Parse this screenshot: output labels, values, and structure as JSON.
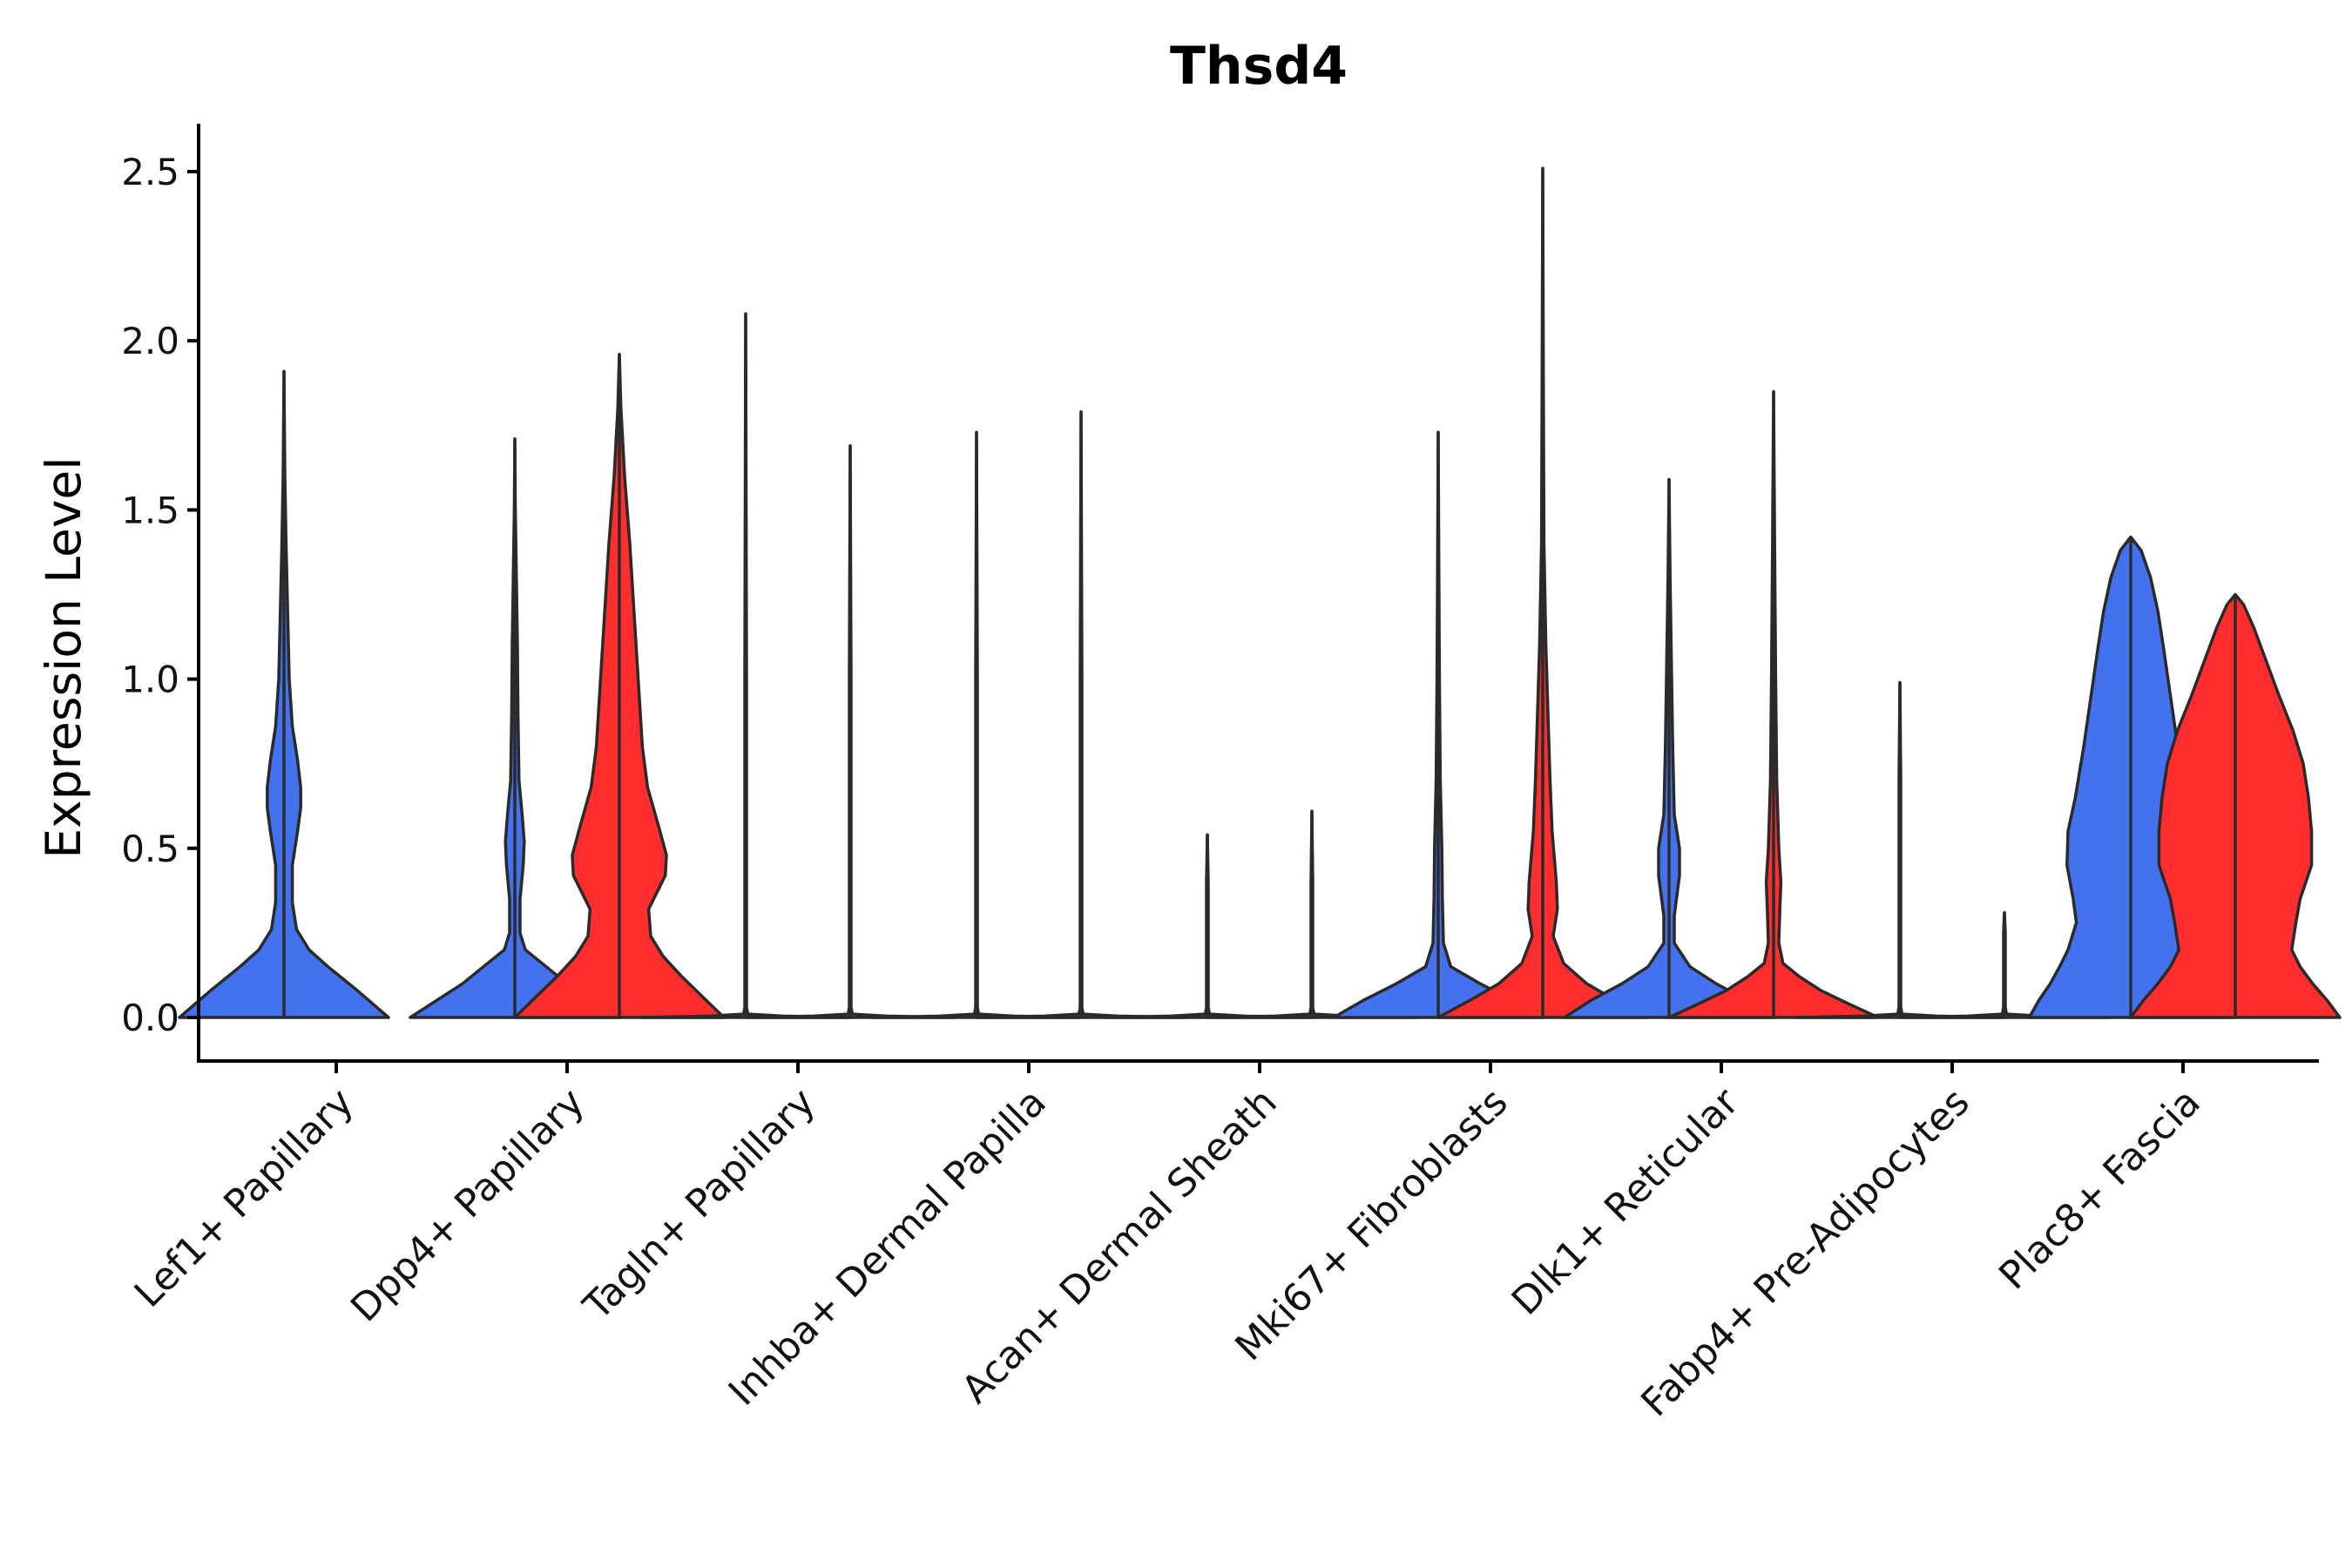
{
  "chart_data": {
    "type": "violin",
    "title": "Thsd4",
    "xlabel": "",
    "ylabel": "Expression Level",
    "ylim": [
      -0.13,
      2.64
    ],
    "yticks": [
      0.0,
      0.5,
      1.0,
      1.5,
      2.0,
      2.5
    ],
    "ytick_labels": [
      "0.0",
      "0.5",
      "1.0",
      "1.5",
      "2.0",
      "2.5"
    ],
    "grid": false,
    "legend": "none",
    "series_colors": [
      "#4472ee",
      "#ff2d2d"
    ],
    "categories": [
      {
        "label": "Lef1+ Papillary",
        "violins": [
          {
            "color": "#4472ee",
            "max": 1.91,
            "profile": [
              [
                0,
                1.0
              ],
              [
                0.08,
                0.7
              ],
              [
                0.15,
                0.42
              ],
              [
                0.2,
                0.24
              ],
              [
                0.26,
                0.12
              ],
              [
                0.34,
                0.08
              ],
              [
                0.45,
                0.08
              ],
              [
                0.55,
                0.13
              ],
              [
                0.62,
                0.16
              ],
              [
                0.68,
                0.16
              ],
              [
                0.76,
                0.13
              ],
              [
                0.86,
                0.08
              ],
              [
                1.0,
                0.05
              ],
              [
                1.2,
                0.035
              ],
              [
                1.4,
                0.02
              ],
              [
                1.6,
                0.008
              ],
              [
                1.91,
                0
              ]
            ]
          }
        ]
      },
      {
        "label": "Dpp4+ Papillary",
        "violins": [
          {
            "color": "#4472ee",
            "max": 1.71,
            "profile": [
              [
                0,
                1.0
              ],
              [
                0.05,
                0.75
              ],
              [
                0.1,
                0.5
              ],
              [
                0.15,
                0.3
              ],
              [
                0.2,
                0.1
              ],
              [
                0.25,
                0.05
              ],
              [
                0.35,
                0.05
              ],
              [
                0.45,
                0.08
              ],
              [
                0.52,
                0.09
              ],
              [
                0.6,
                0.07
              ],
              [
                0.7,
                0.04
              ],
              [
                0.9,
                0.03
              ],
              [
                1.1,
                0.025
              ],
              [
                1.3,
                0.015
              ],
              [
                1.5,
                0.005
              ],
              [
                1.71,
                0
              ]
            ]
          },
          {
            "color": "#ff2d2d",
            "max": 1.96,
            "profile": [
              [
                0,
                1.0
              ],
              [
                0.06,
                0.8
              ],
              [
                0.12,
                0.6
              ],
              [
                0.18,
                0.42
              ],
              [
                0.24,
                0.3
              ],
              [
                0.32,
                0.28
              ],
              [
                0.42,
                0.44
              ],
              [
                0.48,
                0.45
              ],
              [
                0.56,
                0.38
              ],
              [
                0.68,
                0.27
              ],
              [
                0.8,
                0.22
              ],
              [
                1.0,
                0.18
              ],
              [
                1.2,
                0.14
              ],
              [
                1.4,
                0.1
              ],
              [
                1.6,
                0.05
              ],
              [
                1.8,
                0.015
              ],
              [
                1.96,
                0
              ]
            ]
          }
        ]
      },
      {
        "label": "Tagln+ Papillary",
        "violins": [
          {
            "color": "#4472ee",
            "max": 2.08,
            "profile": [
              [
                0,
                1.0
              ],
              [
                0.004,
                0.35
              ],
              [
                0.01,
                0.02
              ],
              [
                0.03,
                0.008
              ],
              [
                1.0,
                0.008
              ],
              [
                2.08,
                0
              ]
            ]
          },
          {
            "color": "#ff2d2d",
            "max": 1.69,
            "profile": [
              [
                0,
                1.0
              ],
              [
                0.004,
                0.35
              ],
              [
                0.01,
                0.02
              ],
              [
                0.03,
                0.008
              ],
              [
                1.0,
                0.008
              ],
              [
                1.69,
                0
              ]
            ]
          }
        ]
      },
      {
        "label": "Inhba+ Dermal Papilla",
        "violins": [
          {
            "color": "#4472ee",
            "max": 1.73,
            "profile": [
              [
                0,
                1.0
              ],
              [
                0.004,
                0.35
              ],
              [
                0.01,
                0.02
              ],
              [
                0.03,
                0.008
              ],
              [
                1.0,
                0.008
              ],
              [
                1.73,
                0
              ]
            ]
          },
          {
            "color": "#ff2d2d",
            "max": 1.79,
            "profile": [
              [
                0,
                1.0
              ],
              [
                0.004,
                0.35
              ],
              [
                0.01,
                0.02
              ],
              [
                0.03,
                0.008
              ],
              [
                1.0,
                0.008
              ],
              [
                1.79,
                0
              ]
            ]
          }
        ]
      },
      {
        "label": "Acan+ Dermal Sheath",
        "violins": [
          {
            "color": "#4472ee",
            "max": 0.54,
            "profile": [
              [
                0,
                1.0
              ],
              [
                0.004,
                0.35
              ],
              [
                0.01,
                0.02
              ],
              [
                0.03,
                0.008
              ],
              [
                0.4,
                0.008
              ],
              [
                0.54,
                0
              ]
            ]
          },
          {
            "color": "#ff2d2d",
            "max": 0.61,
            "profile": [
              [
                0,
                1.0
              ],
              [
                0.004,
                0.35
              ],
              [
                0.01,
                0.02
              ],
              [
                0.03,
                0.008
              ],
              [
                0.4,
                0.008
              ],
              [
                0.61,
                0
              ]
            ]
          }
        ]
      },
      {
        "label": "Mki67+ Fibroblasts",
        "violins": [
          {
            "color": "#4472ee",
            "max": 1.73,
            "profile": [
              [
                0,
                1.0
              ],
              [
                0.05,
                0.72
              ],
              [
                0.1,
                0.4
              ],
              [
                0.15,
                0.12
              ],
              [
                0.22,
                0.05
              ],
              [
                0.35,
                0.04
              ],
              [
                0.5,
                0.035
              ],
              [
                0.7,
                0.02
              ],
              [
                1.0,
                0.012
              ],
              [
                1.4,
                0.005
              ],
              [
                1.73,
                0
              ]
            ]
          },
          {
            "color": "#ff2d2d",
            "max": 2.51,
            "profile": [
              [
                0,
                1.0
              ],
              [
                0.05,
                0.7
              ],
              [
                0.1,
                0.42
              ],
              [
                0.16,
                0.2
              ],
              [
                0.24,
                0.1
              ],
              [
                0.32,
                0.14
              ],
              [
                0.4,
                0.13
              ],
              [
                0.55,
                0.09
              ],
              [
                0.7,
                0.07
              ],
              [
                0.9,
                0.05
              ],
              [
                1.1,
                0.03
              ],
              [
                1.4,
                0.012
              ],
              [
                2.0,
                0.005
              ],
              [
                2.51,
                0
              ]
            ]
          }
        ]
      },
      {
        "label": "Dlk1+ Reticular",
        "violins": [
          {
            "color": "#4472ee",
            "max": 1.59,
            "profile": [
              [
                0,
                1.0
              ],
              [
                0.05,
                0.75
              ],
              [
                0.1,
                0.45
              ],
              [
                0.15,
                0.2
              ],
              [
                0.22,
                0.05
              ],
              [
                0.3,
                0.05
              ],
              [
                0.42,
                0.1
              ],
              [
                0.5,
                0.1
              ],
              [
                0.6,
                0.05
              ],
              [
                0.8,
                0.035
              ],
              [
                1.0,
                0.025
              ],
              [
                1.3,
                0.01
              ],
              [
                1.59,
                0
              ]
            ]
          },
          {
            "color": "#ff2d2d",
            "max": 1.85,
            "profile": [
              [
                0,
                1.0
              ],
              [
                0.04,
                0.72
              ],
              [
                0.08,
                0.45
              ],
              [
                0.12,
                0.25
              ],
              [
                0.16,
                0.09
              ],
              [
                0.22,
                0.05
              ],
              [
                0.32,
                0.06
              ],
              [
                0.4,
                0.07
              ],
              [
                0.5,
                0.05
              ],
              [
                0.7,
                0.03
              ],
              [
                1.0,
                0.02
              ],
              [
                1.4,
                0.01
              ],
              [
                1.85,
                0
              ]
            ]
          }
        ]
      },
      {
        "label": "Fabp4+ Pre-Adipocytes",
        "violins": [
          {
            "color": "#4472ee",
            "max": 0.99,
            "profile": [
              [
                0,
                1.0
              ],
              [
                0.004,
                0.35
              ],
              [
                0.01,
                0.02
              ],
              [
                0.03,
                0.008
              ],
              [
                0.7,
                0.008
              ],
              [
                0.99,
                0
              ]
            ]
          },
          {
            "color": "#ff2d2d",
            "max": 0.31,
            "profile": [
              [
                0,
                1.0
              ],
              [
                0.004,
                0.35
              ],
              [
                0.01,
                0.02
              ],
              [
                0.03,
                0.008
              ],
              [
                0.25,
                0.008
              ],
              [
                0.31,
                0
              ]
            ]
          }
        ]
      },
      {
        "label": "Plac8+ Fascia",
        "violins": [
          {
            "color": "#4472ee",
            "max": 1.42,
            "profile": [
              [
                0,
                0.97
              ],
              [
                0.05,
                0.88
              ],
              [
                0.1,
                0.77
              ],
              [
                0.15,
                0.68
              ],
              [
                0.2,
                0.6
              ],
              [
                0.28,
                0.52
              ],
              [
                0.35,
                0.55
              ],
              [
                0.45,
                0.61
              ],
              [
                0.55,
                0.6
              ],
              [
                0.65,
                0.53
              ],
              [
                0.8,
                0.45
              ],
              [
                0.95,
                0.38
              ],
              [
                1.1,
                0.31
              ],
              [
                1.2,
                0.26
              ],
              [
                1.3,
                0.19
              ],
              [
                1.38,
                0.1
              ],
              [
                1.42,
                0
              ]
            ]
          },
          {
            "color": "#ff2d2d",
            "max": 1.25,
            "profile": [
              [
                0,
                1.0
              ],
              [
                0.05,
                0.88
              ],
              [
                0.1,
                0.74
              ],
              [
                0.15,
                0.62
              ],
              [
                0.2,
                0.54
              ],
              [
                0.28,
                0.58
              ],
              [
                0.35,
                0.62
              ],
              [
                0.45,
                0.73
              ],
              [
                0.55,
                0.73
              ],
              [
                0.65,
                0.7
              ],
              [
                0.75,
                0.65
              ],
              [
                0.85,
                0.55
              ],
              [
                0.95,
                0.42
              ],
              [
                1.05,
                0.3
              ],
              [
                1.15,
                0.18
              ],
              [
                1.22,
                0.08
              ],
              [
                1.25,
                0
              ]
            ]
          }
        ]
      }
    ]
  }
}
